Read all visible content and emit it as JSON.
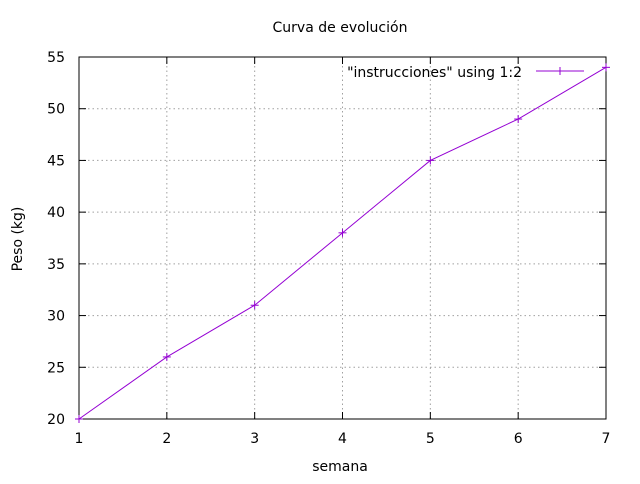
{
  "chart_data": {
    "type": "line",
    "title": "Curva de evolución",
    "xlabel": "semana",
    "ylabel": "Peso (kg)",
    "xlim": [
      1,
      7
    ],
    "ylim": [
      20,
      55
    ],
    "xticks": [
      1,
      2,
      3,
      4,
      5,
      6,
      7
    ],
    "yticks": [
      20,
      25,
      30,
      35,
      40,
      45,
      50,
      55
    ],
    "grid": true,
    "legend_position": "top-right",
    "series": [
      {
        "name": "\"instrucciones\" using 1:2",
        "color": "#9400d3",
        "marker": "plus",
        "x": [
          1,
          2,
          3,
          4,
          5,
          6,
          7
        ],
        "y": [
          20,
          26,
          31,
          38,
          45,
          49,
          54
        ]
      }
    ]
  }
}
